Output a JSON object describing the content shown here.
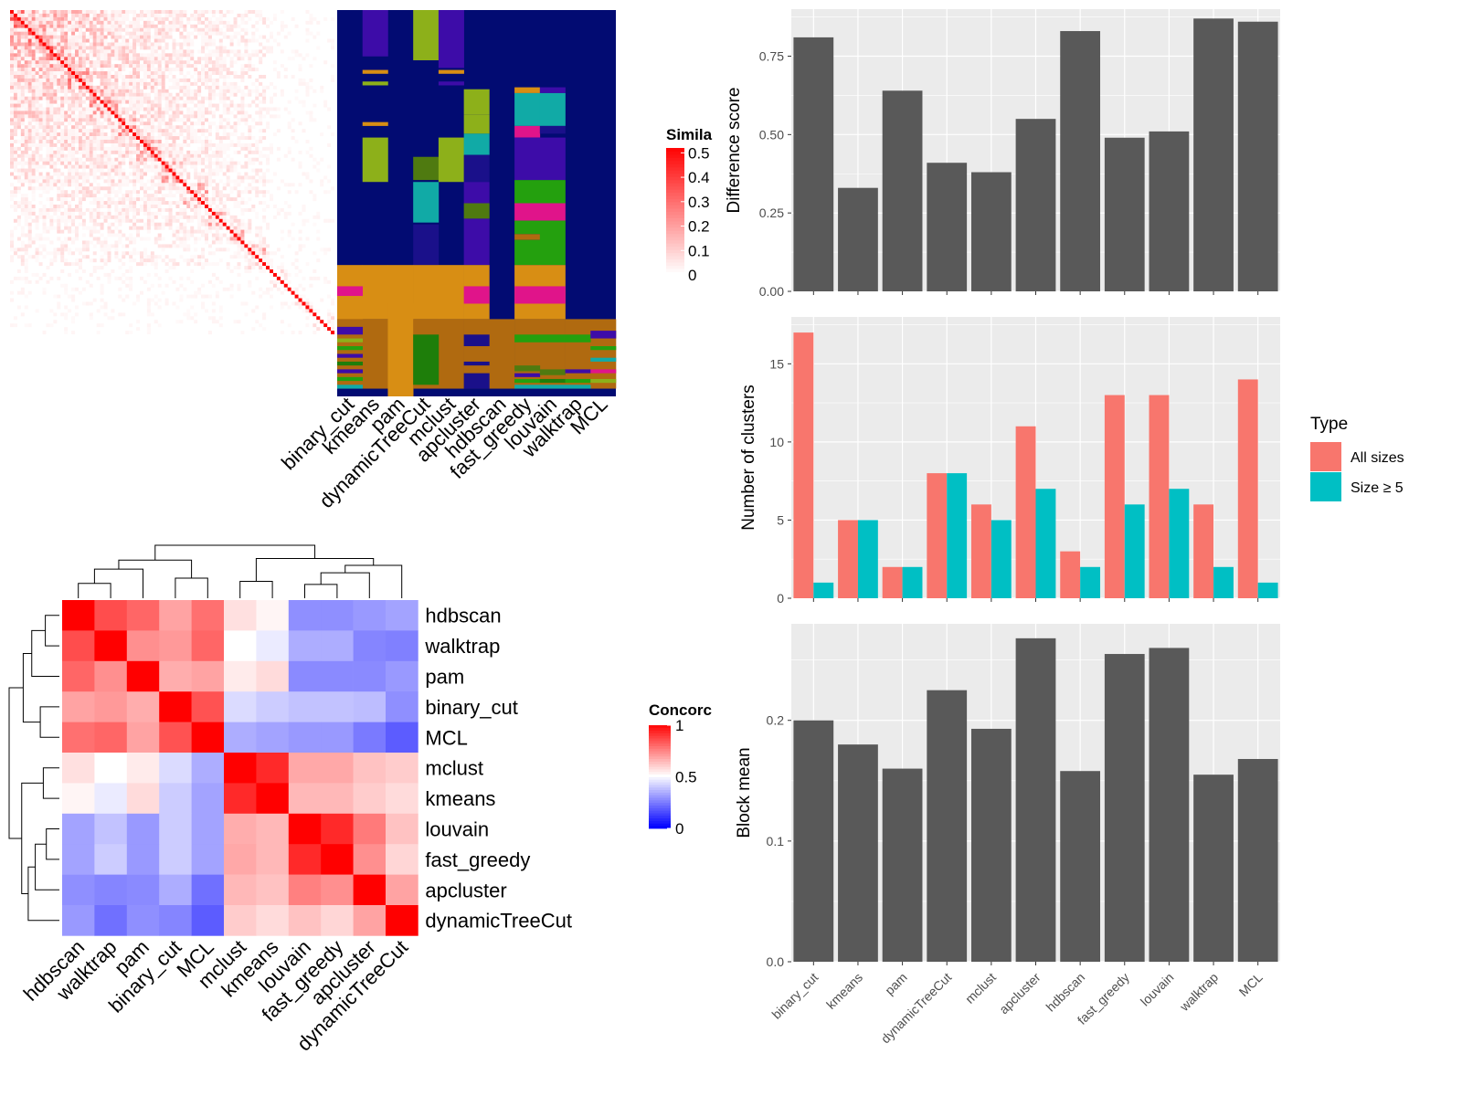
{
  "chart_data": [
    {
      "type": "heatmap",
      "id": "similarity_matrix",
      "legend": {
        "title": "Simila",
        "ticks": [
          "0",
          "0.1",
          "0.2",
          "0.3",
          "0.4",
          "0.5"
        ],
        "range": [
          0,
          0.52
        ],
        "colors": [
          "#ffffff",
          "#ff0000"
        ]
      }
    },
    {
      "type": "heatmap",
      "id": "cluster_membership",
      "columns": [
        "binary_cut",
        "kmeans",
        "pam",
        "dynamicTreeCut",
        "mclust",
        "apcluster",
        "hdbscan",
        "fast_greedy",
        "louvain",
        "walktrap",
        "MCL"
      ]
    },
    {
      "type": "bar",
      "id": "difference_score",
      "ylabel": "Difference score",
      "categories": [
        "binary_cut",
        "kmeans",
        "pam",
        "dynamicTreeCut",
        "mclust",
        "apcluster",
        "hdbscan",
        "fast_greedy",
        "louvain",
        "walktrap",
        "MCL"
      ],
      "values": [
        0.81,
        0.33,
        0.64,
        0.41,
        0.38,
        0.55,
        0.83,
        0.49,
        0.51,
        0.87,
        0.86
      ],
      "ylim": [
        0,
        0.9
      ],
      "yticks": [
        0,
        0.25,
        0.5,
        0.75
      ],
      "ytick_labels": [
        "0.00",
        "0.25",
        "0.50",
        "0.75"
      ],
      "color": "#595959",
      "grid": true
    },
    {
      "type": "bar",
      "id": "number_of_clusters",
      "ylabel": "Number of clusters",
      "categories": [
        "binary_cut",
        "kmeans",
        "pam",
        "dynamicTreeCut",
        "mclust",
        "apcluster",
        "hdbscan",
        "fast_greedy",
        "louvain",
        "walktrap",
        "MCL"
      ],
      "series": [
        {
          "name": "All sizes",
          "color": "#f8766d",
          "values": [
            17,
            5,
            2,
            8,
            6,
            11,
            3,
            13,
            13,
            6,
            14
          ]
        },
        {
          "name": "Size ≥ 5",
          "color": "#00bfc4",
          "values": [
            1,
            5,
            2,
            8,
            5,
            7,
            2,
            6,
            7,
            2,
            1
          ]
        }
      ],
      "ylim": [
        0,
        18
      ],
      "yticks": [
        0,
        5,
        10,
        15
      ],
      "ytick_labels": [
        "0",
        "5",
        "10",
        "15"
      ],
      "legend": {
        "title": "Type",
        "position": "right"
      },
      "grid": true
    },
    {
      "type": "bar",
      "id": "block_mean",
      "ylabel": "Block mean",
      "categories": [
        "binary_cut",
        "kmeans",
        "pam",
        "dynamicTreeCut",
        "mclust",
        "apcluster",
        "hdbscan",
        "fast_greedy",
        "louvain",
        "walktrap",
        "MCL"
      ],
      "values": [
        0.2,
        0.18,
        0.16,
        0.225,
        0.193,
        0.268,
        0.158,
        0.255,
        0.26,
        0.155,
        0.168
      ],
      "ylim": [
        0,
        0.28
      ],
      "yticks": [
        0,
        0.1,
        0.2
      ],
      "ytick_labels": [
        "0.0",
        "0.1",
        "0.2"
      ],
      "color": "#595959",
      "grid": true
    },
    {
      "type": "heatmap",
      "id": "concordance",
      "legend": {
        "title": "Concorc",
        "ticks": [
          "0",
          "0.5",
          "1"
        ],
        "range": [
          0,
          1
        ],
        "colors": [
          "#0000ff",
          "#ffffff",
          "#ff0000"
        ]
      },
      "rows": [
        "hdbscan",
        "walktrap",
        "pam",
        "binary_cut",
        "MCL",
        "mclust",
        "kmeans",
        "louvain",
        "fast_greedy",
        "apcluster",
        "dynamicTreeCut"
      ],
      "columns": [
        "hdbscan",
        "walktrap",
        "pam",
        "binary_cut",
        "MCL",
        "mclust",
        "kmeans",
        "louvain",
        "fast_greedy",
        "apcluster",
        "dynamicTreeCut"
      ],
      "values": [
        [
          1.0,
          0.85,
          0.8,
          0.68,
          0.78,
          0.56,
          0.52,
          0.28,
          0.28,
          0.3,
          0.32
        ],
        [
          0.85,
          1.0,
          0.72,
          0.7,
          0.8,
          0.5,
          0.46,
          0.34,
          0.34,
          0.26,
          0.25
        ],
        [
          0.8,
          0.72,
          1.0,
          0.66,
          0.68,
          0.54,
          0.57,
          0.27,
          0.27,
          0.27,
          0.3
        ],
        [
          0.68,
          0.7,
          0.66,
          1.0,
          0.84,
          0.43,
          0.4,
          0.38,
          0.38,
          0.37,
          0.28
        ],
        [
          0.78,
          0.8,
          0.68,
          0.84,
          1.0,
          0.34,
          0.32,
          0.3,
          0.3,
          0.24,
          0.18
        ],
        [
          0.56,
          0.5,
          0.54,
          0.43,
          0.34,
          1.0,
          0.92,
          0.67,
          0.67,
          0.62,
          0.6
        ],
        [
          0.52,
          0.46,
          0.57,
          0.4,
          0.32,
          0.92,
          1.0,
          0.64,
          0.64,
          0.6,
          0.57
        ],
        [
          0.32,
          0.38,
          0.3,
          0.4,
          0.32,
          0.66,
          0.64,
          1.0,
          0.92,
          0.76,
          0.62
        ],
        [
          0.32,
          0.4,
          0.3,
          0.4,
          0.32,
          0.67,
          0.64,
          0.92,
          1.0,
          0.72,
          0.58
        ],
        [
          0.28,
          0.26,
          0.27,
          0.34,
          0.22,
          0.64,
          0.62,
          0.75,
          0.72,
          1.0,
          0.68
        ],
        [
          0.3,
          0.22,
          0.28,
          0.26,
          0.18,
          0.6,
          0.57,
          0.62,
          0.58,
          0.68,
          1.0
        ]
      ]
    }
  ]
}
